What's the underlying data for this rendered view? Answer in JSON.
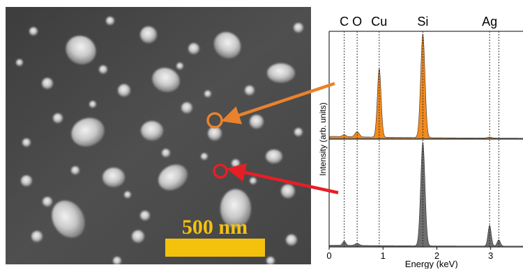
{
  "sem_image": {
    "scale_bar_label": "500 nm",
    "colors": {
      "scale_bar": "#f4c20d",
      "orange_marker": "#e9822d",
      "red_marker": "#e81e25",
      "background": "#4a4a4a"
    }
  },
  "chart_data": {
    "type": "line",
    "xlabel": "Energy (keV)",
    "ylabel": "Intensity (arb. units)",
    "xlim": [
      0,
      3.6
    ],
    "x_ticks": [
      "0",
      "1",
      "2",
      "3"
    ],
    "element_lines": [
      {
        "label": "C",
        "energy": 0.28
      },
      {
        "label": "O",
        "energy": 0.52
      },
      {
        "label": "Cu",
        "energy": 0.93
      },
      {
        "label": "Si",
        "energy": 1.74
      },
      {
        "label": "Ag",
        "energy": 2.98
      },
      {
        "label": "",
        "energy": 3.15
      }
    ],
    "series": [
      {
        "color": "#f28a1e",
        "panel": "top",
        "peaks": [
          {
            "energy": 0.28,
            "height": 0.02,
            "width": 0.03
          },
          {
            "energy": 0.52,
            "height": 0.05,
            "width": 0.04
          },
          {
            "energy": 0.93,
            "height": 0.66,
            "width": 0.035
          },
          {
            "energy": 1.74,
            "height": 1.0,
            "width": 0.04
          },
          {
            "energy": 2.98,
            "height": 0.01,
            "width": 0.04
          }
        ],
        "baseline": 0.02
      },
      {
        "color": "#6e6e6e",
        "panel": "bottom",
        "peaks": [
          {
            "energy": 0.28,
            "height": 0.04,
            "width": 0.03
          },
          {
            "energy": 0.52,
            "height": 0.02,
            "width": 0.04
          },
          {
            "energy": 1.74,
            "height": 1.0,
            "width": 0.04
          },
          {
            "energy": 2.98,
            "height": 0.2,
            "width": 0.03
          },
          {
            "energy": 3.15,
            "height": 0.06,
            "width": 0.03
          }
        ],
        "baseline": 0.01
      }
    ],
    "grid": false
  }
}
